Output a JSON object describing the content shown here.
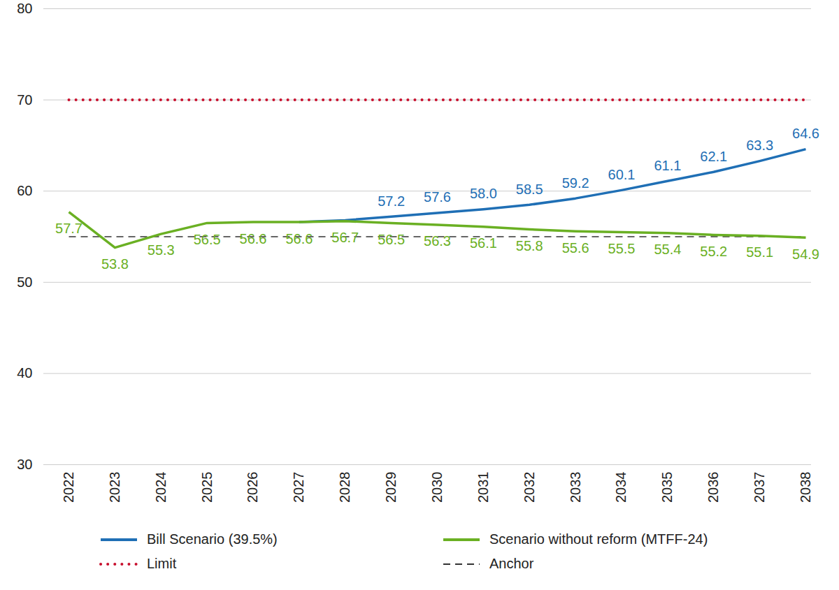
{
  "chart_data": {
    "type": "line",
    "x": [
      2022,
      2023,
      2024,
      2025,
      2026,
      2027,
      2028,
      2029,
      2030,
      2031,
      2032,
      2033,
      2034,
      2035,
      2036,
      2037,
      2038
    ],
    "xlim": [
      2022,
      2038
    ],
    "xticks": [
      2022,
      2023,
      2024,
      2025,
      2026,
      2027,
      2028,
      2029,
      2030,
      2031,
      2032,
      2033,
      2034,
      2035,
      2036,
      2037,
      2038
    ],
    "ylim": [
      30,
      80
    ],
    "yticks": [
      30,
      40,
      50,
      60,
      70,
      80
    ],
    "grid": true,
    "legend": "bottom",
    "series": [
      {
        "name": "Bill Scenario (39.5%)",
        "color": "#1f6fb5",
        "line_style": "solid",
        "data_labels": true,
        "values": [
          null,
          null,
          null,
          null,
          null,
          56.6,
          56.8,
          57.2,
          57.6,
          58.0,
          58.5,
          59.2,
          60.1,
          61.1,
          62.1,
          63.3,
          64.6
        ],
        "value_labels": [
          null,
          null,
          null,
          null,
          null,
          null,
          null,
          "57.2",
          "57.6",
          "58.0",
          "58.5",
          "59.2",
          "60.1",
          "61.1",
          "62.1",
          "63.3",
          "64.6"
        ]
      },
      {
        "name": "Scenario without reform (MTFF-24)",
        "color": "#6ab023",
        "line_style": "solid",
        "data_labels": true,
        "values": [
          57.7,
          53.8,
          55.3,
          56.5,
          56.6,
          56.6,
          56.7,
          56.5,
          56.3,
          56.1,
          55.8,
          55.6,
          55.5,
          55.4,
          55.2,
          55.1,
          54.9
        ],
        "value_labels": [
          "57.7",
          "53.8",
          "55.3",
          "56.5",
          "56.6",
          "56.6",
          "56.7",
          "56.5",
          "56.3",
          "56.1",
          "55.8",
          "55.6",
          "55.5",
          "55.4",
          "55.2",
          "55.1",
          "54.9"
        ]
      },
      {
        "name": "Limit",
        "color": "#c8102e",
        "line_style": "dotted",
        "data_labels": false,
        "values": [
          70,
          70,
          70,
          70,
          70,
          70,
          70,
          70,
          70,
          70,
          70,
          70,
          70,
          70,
          70,
          70,
          70
        ]
      },
      {
        "name": "Anchor",
        "color": "#333333",
        "line_style": "dashed",
        "data_labels": false,
        "values": [
          55,
          55,
          55,
          55,
          55,
          55,
          55,
          55,
          55,
          55,
          55,
          55,
          55,
          55,
          55,
          55,
          55
        ]
      }
    ]
  }
}
